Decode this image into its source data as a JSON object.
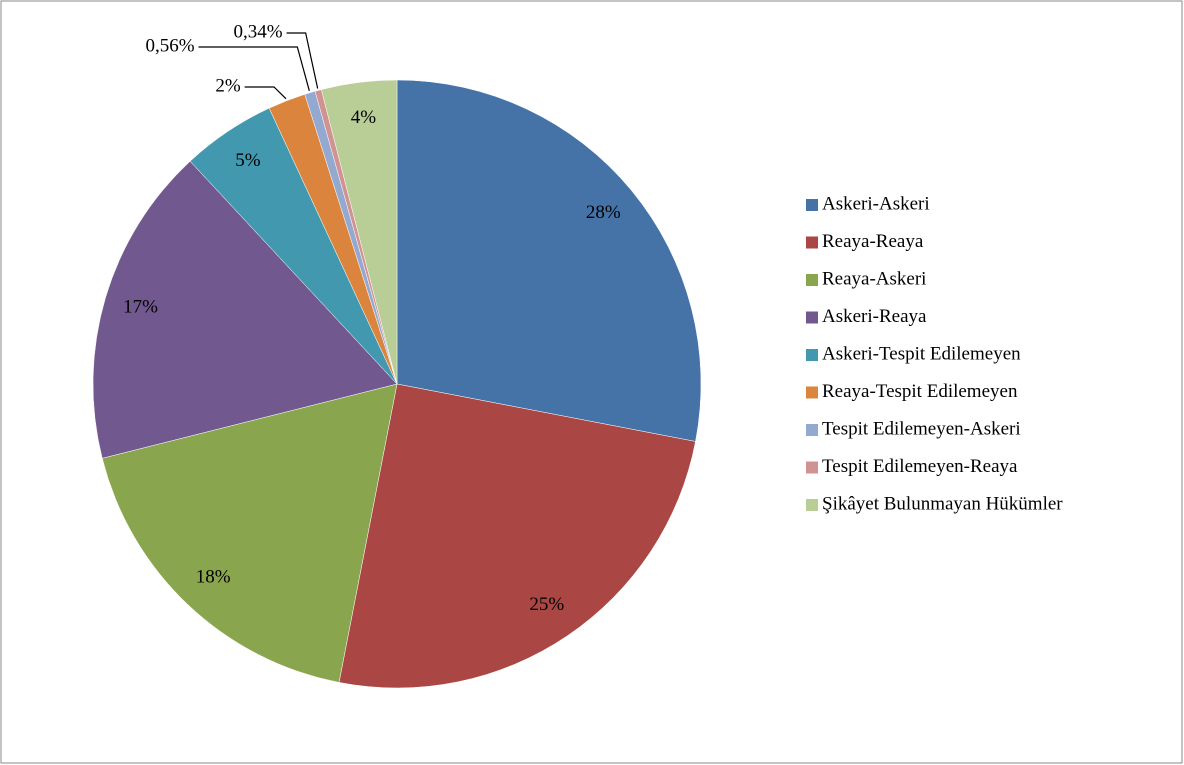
{
  "chart_data": {
    "type": "pie",
    "categories": [
      "Askeri-Askeri",
      "Reaya-Reaya",
      "Reaya-Askeri",
      "Askeri-Reaya",
      "Askeri-Tespit Edilemeyen",
      "Reaya-Tespit Edilemeyen",
      "Tespit Edilemeyen-Askeri",
      "Tespit Edilemeyen-Reaya",
      "Şikâyet Bulunmayan Hükümler"
    ],
    "values": [
      28,
      25,
      18,
      17,
      5,
      2,
      0.56,
      0.34,
      4
    ],
    "value_labels": [
      "28%",
      "25%",
      "18%",
      "17%",
      "5%",
      "2%",
      "0,56%",
      "0,34%",
      "4%"
    ],
    "colors": [
      "#4572a7",
      "#aa4643",
      "#89a54e",
      "#71588f",
      "#4198af",
      "#db843d",
      "#93a9cf",
      "#d19392",
      "#b9cd96"
    ],
    "legend": "right"
  }
}
